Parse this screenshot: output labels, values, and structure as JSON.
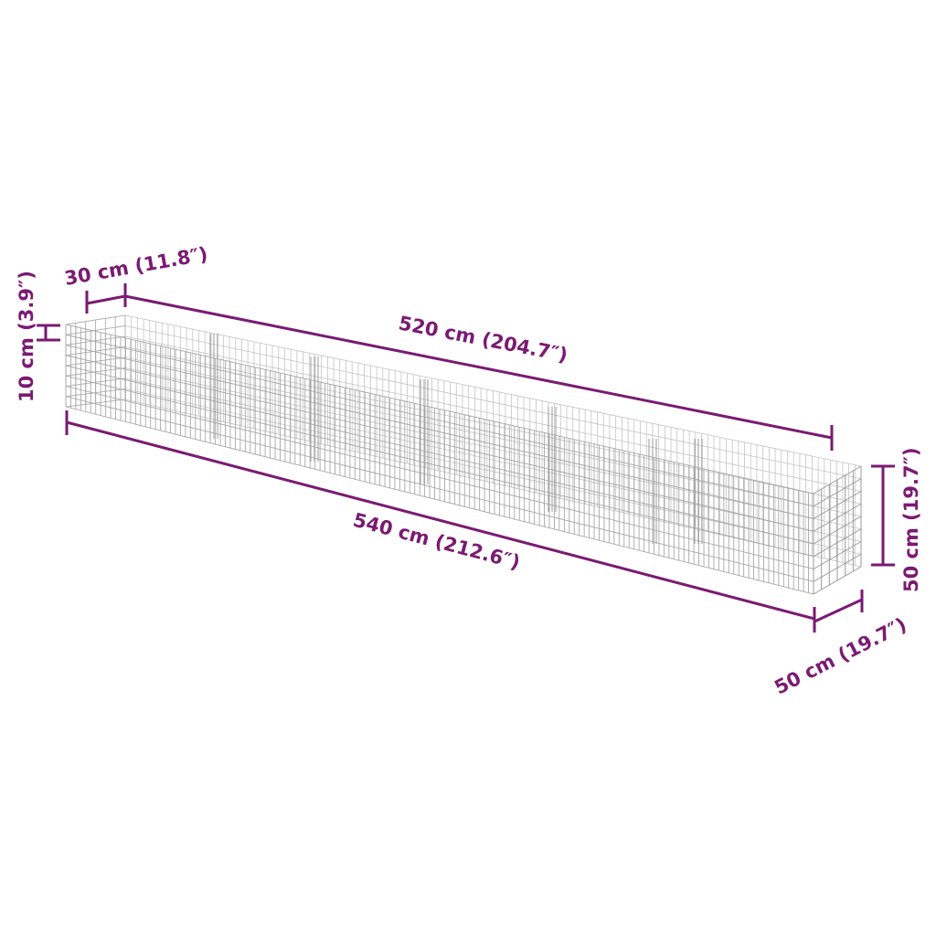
{
  "accent_color": "#7a1a72",
  "product": "wire gabion planter",
  "dimensions": {
    "inner_width": "30 cm (11.8″)",
    "base_height": "10 cm (3.9″)",
    "inner_length": "520 cm (204.7″)",
    "outer_length": "540 cm (212.6″)",
    "height": "50 cm (19.7″)",
    "depth": "50 cm (19.7″)"
  }
}
